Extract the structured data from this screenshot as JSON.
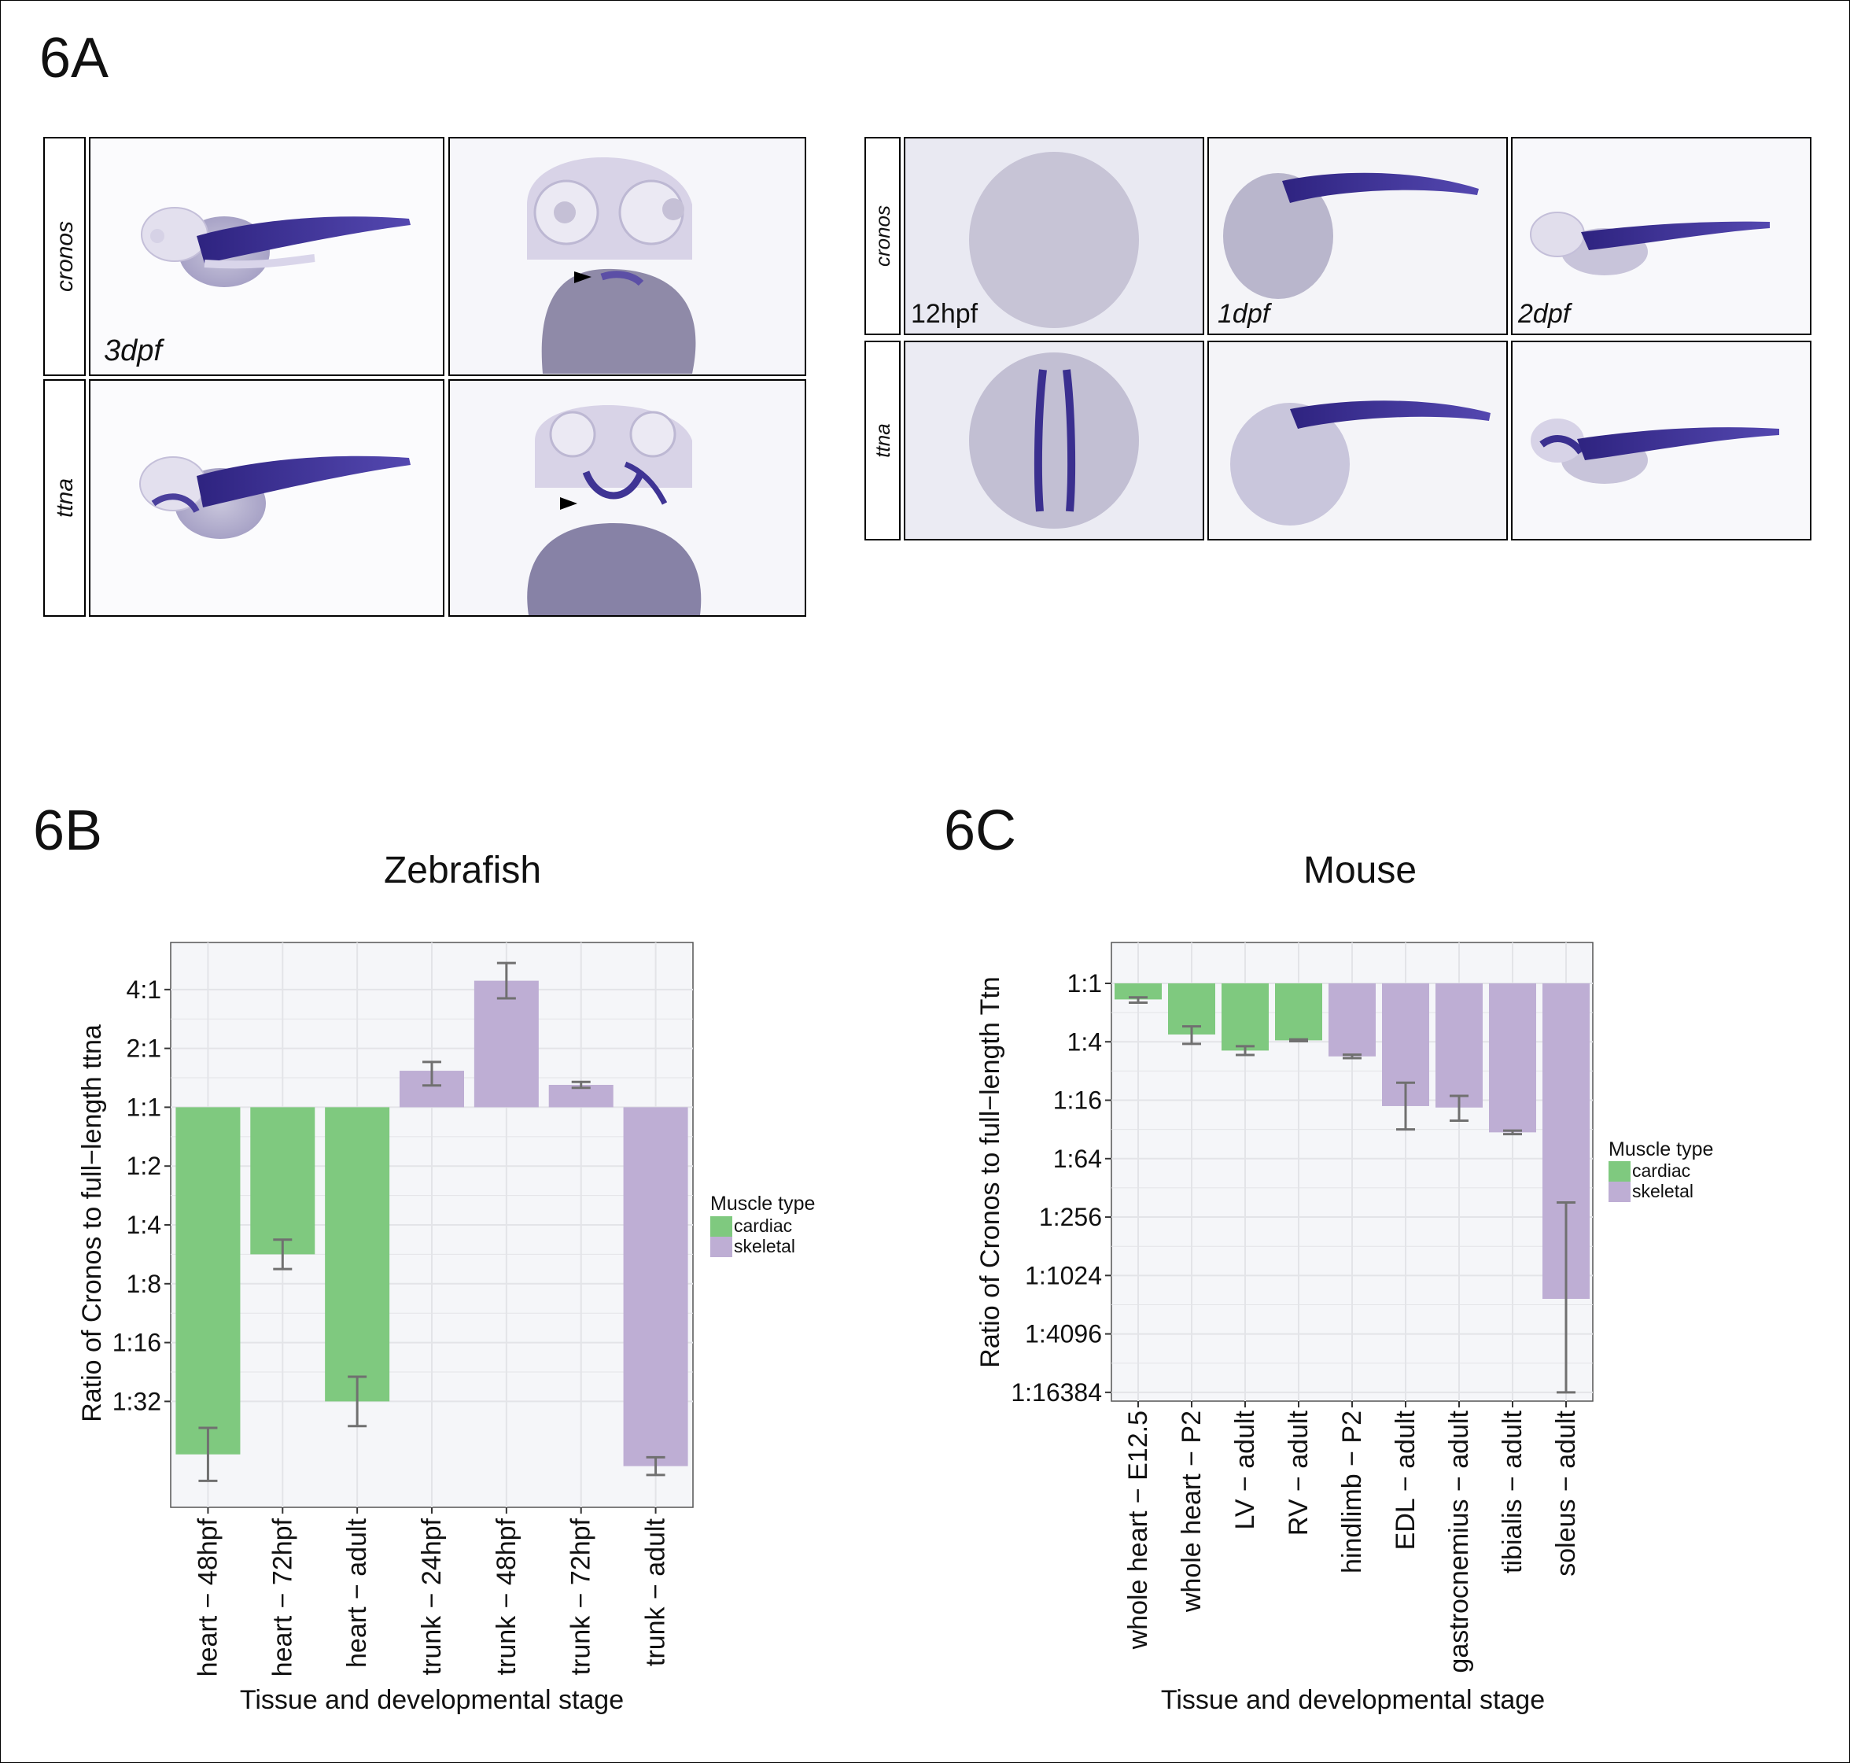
{
  "figure": {
    "panel_a_label": "6A",
    "panel_b_label": "6B",
    "panel_c_label": "6C"
  },
  "panel_a": {
    "left_block": {
      "rows": [
        "cronos",
        "ttna"
      ],
      "stage_label": "3dpf"
    },
    "right_block": {
      "rows": [
        "cronos",
        "ttna"
      ],
      "stage_labels": [
        "12hpf",
        "1dpf",
        "2dpf"
      ]
    },
    "stain_color": "#3a2f8f"
  },
  "colors": {
    "cardiac": "#7fc97f",
    "skeletal": "#beaed4",
    "panel_bg": "#f5f6f9",
    "grid": "#e3e4e8",
    "error_bar": "#707070"
  },
  "chart_data": [
    {
      "type": "bar",
      "title": "Zebrafish",
      "xlabel": "Tissue and developmental stage",
      "ylabel": "Ratio of Cronos to full−length ttna",
      "scale": "log2",
      "baseline_log2": 0,
      "ylim_log2": [
        -6.8,
        2.8
      ],
      "yticks": [
        "4:1",
        "2:1",
        "1:1",
        "1:2",
        "1:4",
        "1:8",
        "1:16",
        "1:32"
      ],
      "ytick_log2": [
        2,
        1,
        0,
        -1,
        -2,
        -3,
        -4,
        -5
      ],
      "categories": [
        "heart − 48hpf",
        "heart − 72hpf",
        "heart − adult",
        "trunk − 24hpf",
        "trunk − 48hpf",
        "trunk − 72hpf",
        "trunk − adult"
      ],
      "muscle_type": [
        "cardiac",
        "cardiac",
        "cardiac",
        "skeletal",
        "skeletal",
        "skeletal",
        "skeletal"
      ],
      "values_log2": [
        -5.9,
        -2.5,
        -5.0,
        0.62,
        2.15,
        0.38,
        -6.1
      ],
      "error_low_log2": [
        -6.35,
        -2.75,
        -5.42,
        0.37,
        1.85,
        0.33,
        -6.25
      ],
      "error_high_log2": [
        -5.45,
        -2.25,
        -4.58,
        0.77,
        2.45,
        0.43,
        -5.95
      ],
      "legend": {
        "title": "Muscle type",
        "labels": [
          "cardiac",
          "skeletal"
        ],
        "position": "right"
      }
    },
    {
      "type": "bar",
      "title": "Mouse",
      "xlabel": "Tissue and developmental stage",
      "ylabel": "Ratio of Cronos to full−length Ttn",
      "scale": "log2",
      "baseline_log2": 0,
      "ylim_log2": [
        -14.3,
        1.4
      ],
      "yticks": [
        "1:1",
        "1:4",
        "1:16",
        "1:64",
        "1:256",
        "1:1024",
        "1:4096",
        "1:16384"
      ],
      "ytick_log2": [
        0,
        -2,
        -4,
        -6,
        -8,
        -10,
        -12,
        -14
      ],
      "categories": [
        "whole heart − E12.5",
        "whole heart − P2",
        "LV − adult",
        "RV − adult",
        "hindlimb − P2",
        "EDL − adult",
        "gastrocnemius − adult",
        "tibialis − adult",
        "soleus − adult"
      ],
      "muscle_type": [
        "cardiac",
        "cardiac",
        "cardiac",
        "cardiac",
        "skeletal",
        "skeletal",
        "skeletal",
        "skeletal",
        "skeletal"
      ],
      "values_log2": [
        -0.55,
        -1.75,
        -2.3,
        -1.95,
        -2.5,
        -4.2,
        -4.25,
        -5.1,
        -10.8
      ],
      "error_low_log2": [
        -0.66,
        -2.07,
        -2.45,
        -1.98,
        -2.56,
        -5.0,
        -4.7,
        -5.16,
        -14.0
      ],
      "error_high_log2": [
        -0.48,
        -1.47,
        -2.15,
        -1.92,
        -2.44,
        -3.4,
        -3.85,
        -5.04,
        -7.5
      ],
      "legend": {
        "title": "Muscle type",
        "labels": [
          "cardiac",
          "skeletal"
        ],
        "position": "right"
      }
    }
  ]
}
